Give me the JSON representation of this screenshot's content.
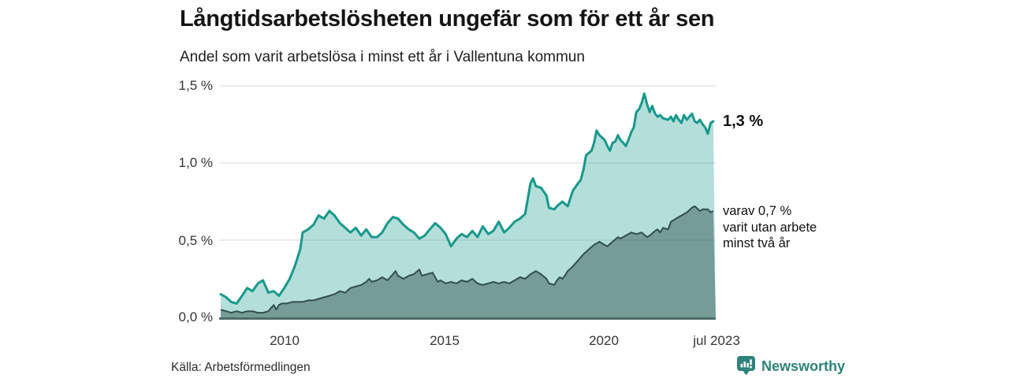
{
  "header": {
    "title": "Långtidsarbetslösheten ungefär som för ett år sen",
    "subtitle": "Andel som varit arbetslösa i minst ett år i Vallentuna kommun"
  },
  "annotations": {
    "latest_value": "1,3 %",
    "secondary_line1": "varav 0,7 %",
    "secondary_line2": "varit utan arbete",
    "secondary_line3": "minst två år"
  },
  "footer": {
    "source": "Källa: Arbetsförmedlingen",
    "brand": "Newsworthy"
  },
  "colors": {
    "series1_line": "#17988a",
    "series1_fill": "rgba(23,152,138,0.32)",
    "series2_line": "#2f4f4a",
    "series2_fill": "rgba(42,76,71,0.45)",
    "axis": "#4d6d68",
    "grid": "#d9d9d9",
    "brand_teal": "#2e837b"
  },
  "chart_data": {
    "type": "area",
    "title": "Långtidsarbetslösheten ungefär som för ett år sen",
    "subtitle": "Andel som varit arbetslösa i minst ett år i Vallentuna kommun",
    "unit": "%",
    "grid": "horizontal",
    "legend_position": "right-annotations",
    "x_domain": [
      2008.0,
      2023.58
    ],
    "ylim": [
      0,
      1.5
    ],
    "x_ticks": [
      {
        "value": 2010,
        "label": "2010"
      },
      {
        "value": 2015,
        "label": "2015"
      },
      {
        "value": 2020,
        "label": "2020"
      },
      {
        "value": 2023.5,
        "label": "jul 2023"
      }
    ],
    "y_ticks": [
      {
        "value": 0.0,
        "label": "0,0 %"
      },
      {
        "value": 0.5,
        "label": "0,5 %"
      },
      {
        "value": 1.0,
        "label": "1,0 %"
      },
      {
        "value": 1.5,
        "label": "1,5 %"
      }
    ],
    "series": [
      {
        "name": "Andel arbetslösa minst ett år",
        "end_label": "1,3 %",
        "end_value": 1.3,
        "color": "#17988a",
        "fill": "rgba(23,152,138,0.32)",
        "points": [
          [
            2008.0,
            0.15
          ],
          [
            2008.17,
            0.13
          ],
          [
            2008.33,
            0.1
          ],
          [
            2008.5,
            0.09
          ],
          [
            2008.67,
            0.14
          ],
          [
            2008.83,
            0.19
          ],
          [
            2009.0,
            0.17
          ],
          [
            2009.17,
            0.22
          ],
          [
            2009.33,
            0.24
          ],
          [
            2009.5,
            0.16
          ],
          [
            2009.67,
            0.17
          ],
          [
            2009.83,
            0.14
          ],
          [
            2010.0,
            0.19
          ],
          [
            2010.17,
            0.25
          ],
          [
            2010.33,
            0.33
          ],
          [
            2010.5,
            0.44
          ],
          [
            2010.58,
            0.55
          ],
          [
            2010.75,
            0.57
          ],
          [
            2010.92,
            0.6
          ],
          [
            2011.08,
            0.66
          ],
          [
            2011.25,
            0.64
          ],
          [
            2011.42,
            0.69
          ],
          [
            2011.58,
            0.66
          ],
          [
            2011.75,
            0.61
          ],
          [
            2011.92,
            0.58
          ],
          [
            2012.08,
            0.55
          ],
          [
            2012.25,
            0.58
          ],
          [
            2012.42,
            0.53
          ],
          [
            2012.58,
            0.57
          ],
          [
            2012.75,
            0.52
          ],
          [
            2012.92,
            0.52
          ],
          [
            2013.08,
            0.55
          ],
          [
            2013.25,
            0.61
          ],
          [
            2013.42,
            0.65
          ],
          [
            2013.58,
            0.64
          ],
          [
            2013.75,
            0.6
          ],
          [
            2013.92,
            0.57
          ],
          [
            2014.08,
            0.55
          ],
          [
            2014.25,
            0.51
          ],
          [
            2014.42,
            0.53
          ],
          [
            2014.58,
            0.57
          ],
          [
            2014.75,
            0.61
          ],
          [
            2014.92,
            0.58
          ],
          [
            2015.08,
            0.54
          ],
          [
            2015.25,
            0.46
          ],
          [
            2015.42,
            0.51
          ],
          [
            2015.58,
            0.54
          ],
          [
            2015.75,
            0.52
          ],
          [
            2015.92,
            0.56
          ],
          [
            2016.08,
            0.52
          ],
          [
            2016.25,
            0.59
          ],
          [
            2016.42,
            0.54
          ],
          [
            2016.58,
            0.56
          ],
          [
            2016.75,
            0.62
          ],
          [
            2016.92,
            0.55
          ],
          [
            2017.08,
            0.58
          ],
          [
            2017.25,
            0.62
          ],
          [
            2017.42,
            0.64
          ],
          [
            2017.58,
            0.67
          ],
          [
            2017.75,
            0.87
          ],
          [
            2017.83,
            0.9
          ],
          [
            2017.92,
            0.85
          ],
          [
            2018.08,
            0.84
          ],
          [
            2018.25,
            0.79
          ],
          [
            2018.33,
            0.71
          ],
          [
            2018.5,
            0.7
          ],
          [
            2018.58,
            0.72
          ],
          [
            2018.75,
            0.75
          ],
          [
            2018.92,
            0.72
          ],
          [
            2019.08,
            0.82
          ],
          [
            2019.25,
            0.87
          ],
          [
            2019.33,
            0.89
          ],
          [
            2019.42,
            0.96
          ],
          [
            2019.5,
            1.05
          ],
          [
            2019.67,
            1.08
          ],
          [
            2019.75,
            1.13
          ],
          [
            2019.83,
            1.21
          ],
          [
            2019.92,
            1.18
          ],
          [
            2020.08,
            1.15
          ],
          [
            2020.17,
            1.11
          ],
          [
            2020.25,
            1.08
          ],
          [
            2020.33,
            1.13
          ],
          [
            2020.42,
            1.14
          ],
          [
            2020.5,
            1.18
          ],
          [
            2020.58,
            1.15
          ],
          [
            2020.67,
            1.13
          ],
          [
            2020.75,
            1.11
          ],
          [
            2020.83,
            1.15
          ],
          [
            2020.92,
            1.2
          ],
          [
            2021.0,
            1.23
          ],
          [
            2021.08,
            1.33
          ],
          [
            2021.17,
            1.35
          ],
          [
            2021.25,
            1.39
          ],
          [
            2021.33,
            1.45
          ],
          [
            2021.42,
            1.38
          ],
          [
            2021.5,
            1.33
          ],
          [
            2021.58,
            1.37
          ],
          [
            2021.67,
            1.32
          ],
          [
            2021.75,
            1.3
          ],
          [
            2021.83,
            1.31
          ],
          [
            2021.92,
            1.29
          ],
          [
            2022.08,
            1.28
          ],
          [
            2022.17,
            1.3
          ],
          [
            2022.25,
            1.27
          ],
          [
            2022.33,
            1.31
          ],
          [
            2022.42,
            1.28
          ],
          [
            2022.5,
            1.26
          ],
          [
            2022.58,
            1.31
          ],
          [
            2022.67,
            1.28
          ],
          [
            2022.83,
            1.32
          ],
          [
            2022.92,
            1.27
          ],
          [
            2023.0,
            1.26
          ],
          [
            2023.08,
            1.28
          ],
          [
            2023.17,
            1.25
          ],
          [
            2023.25,
            1.23
          ],
          [
            2023.33,
            1.19
          ],
          [
            2023.42,
            1.26
          ],
          [
            2023.5,
            1.27
          ]
        ]
      },
      {
        "name": "Varav utan arbete minst två år",
        "end_label": "varav 0,7 % varit utan arbete minst två år",
        "end_value": 0.7,
        "color": "#2f4f4a",
        "fill": "rgba(42,76,71,0.45)",
        "points": [
          [
            2008.0,
            0.05
          ],
          [
            2008.17,
            0.04
          ],
          [
            2008.33,
            0.03
          ],
          [
            2008.5,
            0.04
          ],
          [
            2008.67,
            0.03
          ],
          [
            2008.83,
            0.04
          ],
          [
            2009.0,
            0.04
          ],
          [
            2009.17,
            0.03
          ],
          [
            2009.33,
            0.03
          ],
          [
            2009.5,
            0.04
          ],
          [
            2009.58,
            0.06
          ],
          [
            2009.67,
            0.08
          ],
          [
            2009.75,
            0.05
          ],
          [
            2009.83,
            0.08
          ],
          [
            2009.92,
            0.09
          ],
          [
            2010.08,
            0.09
          ],
          [
            2010.25,
            0.1
          ],
          [
            2010.42,
            0.1
          ],
          [
            2010.58,
            0.1
          ],
          [
            2010.75,
            0.11
          ],
          [
            2010.92,
            0.11
          ],
          [
            2011.08,
            0.12
          ],
          [
            2011.25,
            0.13
          ],
          [
            2011.42,
            0.14
          ],
          [
            2011.58,
            0.15
          ],
          [
            2011.75,
            0.17
          ],
          [
            2011.92,
            0.16
          ],
          [
            2012.08,
            0.19
          ],
          [
            2012.25,
            0.2
          ],
          [
            2012.42,
            0.21
          ],
          [
            2012.58,
            0.23
          ],
          [
            2012.67,
            0.25
          ],
          [
            2012.75,
            0.23
          ],
          [
            2012.92,
            0.24
          ],
          [
            2013.08,
            0.26
          ],
          [
            2013.25,
            0.24
          ],
          [
            2013.42,
            0.28
          ],
          [
            2013.5,
            0.3
          ],
          [
            2013.58,
            0.27
          ],
          [
            2013.75,
            0.25
          ],
          [
            2013.92,
            0.27
          ],
          [
            2014.08,
            0.28
          ],
          [
            2014.25,
            0.31
          ],
          [
            2014.33,
            0.27
          ],
          [
            2014.5,
            0.28
          ],
          [
            2014.67,
            0.29
          ],
          [
            2014.83,
            0.23
          ],
          [
            2014.92,
            0.24
          ],
          [
            2015.08,
            0.22
          ],
          [
            2015.25,
            0.23
          ],
          [
            2015.42,
            0.22
          ],
          [
            2015.58,
            0.24
          ],
          [
            2015.75,
            0.23
          ],
          [
            2015.92,
            0.25
          ],
          [
            2016.08,
            0.22
          ],
          [
            2016.25,
            0.21
          ],
          [
            2016.42,
            0.22
          ],
          [
            2016.58,
            0.23
          ],
          [
            2016.75,
            0.22
          ],
          [
            2016.92,
            0.23
          ],
          [
            2017.08,
            0.22
          ],
          [
            2017.25,
            0.24
          ],
          [
            2017.42,
            0.26
          ],
          [
            2017.58,
            0.25
          ],
          [
            2017.75,
            0.28
          ],
          [
            2017.92,
            0.3
          ],
          [
            2018.08,
            0.28
          ],
          [
            2018.25,
            0.25
          ],
          [
            2018.33,
            0.22
          ],
          [
            2018.5,
            0.21
          ],
          [
            2018.58,
            0.24
          ],
          [
            2018.67,
            0.26
          ],
          [
            2018.75,
            0.25
          ],
          [
            2018.83,
            0.27
          ],
          [
            2018.92,
            0.3
          ],
          [
            2019.08,
            0.33
          ],
          [
            2019.25,
            0.37
          ],
          [
            2019.42,
            0.41
          ],
          [
            2019.58,
            0.44
          ],
          [
            2019.75,
            0.47
          ],
          [
            2019.92,
            0.49
          ],
          [
            2020.08,
            0.47
          ],
          [
            2020.17,
            0.46
          ],
          [
            2020.33,
            0.49
          ],
          [
            2020.5,
            0.52
          ],
          [
            2020.58,
            0.51
          ],
          [
            2020.75,
            0.53
          ],
          [
            2020.92,
            0.55
          ],
          [
            2021.08,
            0.54
          ],
          [
            2021.25,
            0.55
          ],
          [
            2021.42,
            0.52
          ],
          [
            2021.5,
            0.53
          ],
          [
            2021.67,
            0.56
          ],
          [
            2021.75,
            0.57
          ],
          [
            2021.83,
            0.55
          ],
          [
            2021.92,
            0.58
          ],
          [
            2022.08,
            0.57
          ],
          [
            2022.17,
            0.62
          ],
          [
            2022.33,
            0.64
          ],
          [
            2022.5,
            0.66
          ],
          [
            2022.67,
            0.68
          ],
          [
            2022.83,
            0.71
          ],
          [
            2022.92,
            0.72
          ],
          [
            2023.08,
            0.69
          ],
          [
            2023.17,
            0.7
          ],
          [
            2023.33,
            0.7
          ],
          [
            2023.42,
            0.68
          ],
          [
            2023.5,
            0.69
          ]
        ]
      }
    ]
  }
}
